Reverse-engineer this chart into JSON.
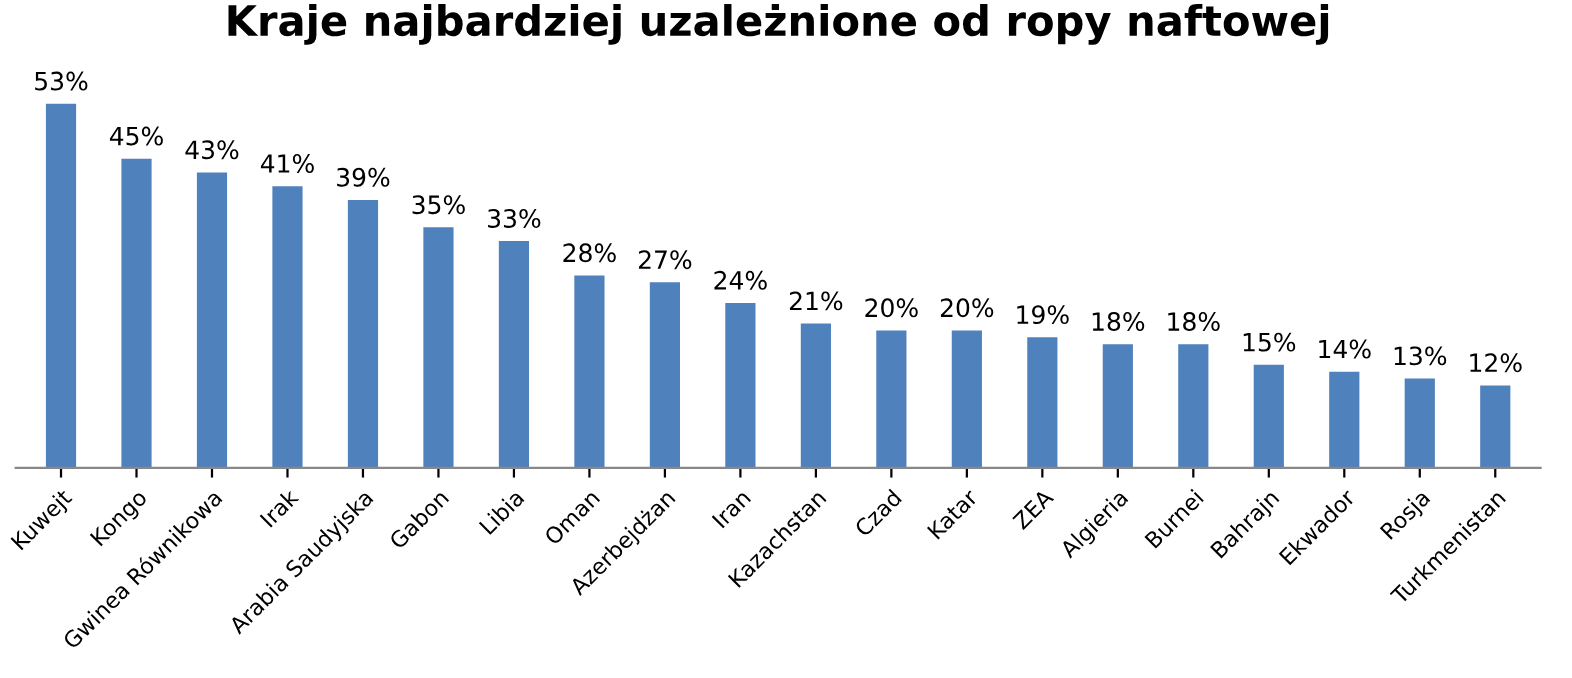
{
  "chart_data": {
    "type": "bar",
    "title": "Kraje najbardziej uzależnione od ropy naftowej",
    "categories": [
      "Kuwejt",
      "Kongo",
      "Gwinea Równikowa",
      "Irak",
      "Arabia Saudyjska",
      "Gabon",
      "Libia",
      "Oman",
      "Azerbejdżan",
      "Iran",
      "Kazachstan",
      "Czad",
      "Katar",
      "ZEA",
      "Algieria",
      "Burnei",
      "Bahrajn",
      "Ekwador",
      "Rosja",
      "Turkmenistan"
    ],
    "values": [
      53,
      45,
      43,
      41,
      39,
      35,
      33,
      28,
      27,
      24,
      21,
      20,
      20,
      19,
      18,
      18,
      15,
      14,
      13,
      12
    ],
    "value_labels": [
      "53%",
      "45%",
      "43%",
      "41%",
      "39%",
      "35%",
      "33%",
      "28%",
      "27%",
      "24%",
      "21%",
      "20%",
      "20%",
      "19%",
      "18%",
      "18%",
      "15%",
      "14%",
      "13%",
      "12%"
    ],
    "color": "#4f81bd",
    "grid": false,
    "legend": false
  }
}
